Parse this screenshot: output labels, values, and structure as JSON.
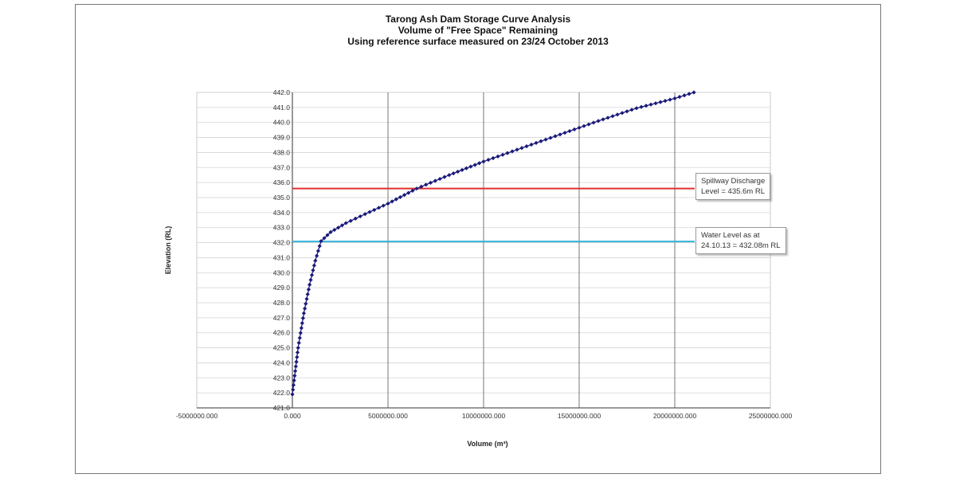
{
  "chart_data": {
    "type": "scatter",
    "title_lines": [
      "Tarong Ash Dam Storage Curve Analysis",
      "Volume of \"Free Space\" Remaining",
      "Using reference surface measured on 23/24 October 2013"
    ],
    "xlabel": "Volume (m³)",
    "ylabel": "Elevation (RL)",
    "xlim": [
      -5000000,
      25000000
    ],
    "ylim": [
      421.0,
      442.0
    ],
    "x_ticks": [
      "-5000000.000",
      "0.000",
      "5000000.000",
      "10000000.000",
      "15000000.000",
      "20000000.000",
      "25000000.000"
    ],
    "y_ticks": [
      "421.0",
      "422.0",
      "423.0",
      "424.0",
      "425.0",
      "426.0",
      "427.0",
      "428.0",
      "429.0",
      "430.0",
      "431.0",
      "432.0",
      "433.0",
      "434.0",
      "435.0",
      "436.0",
      "437.0",
      "438.0",
      "439.0",
      "440.0",
      "441.0",
      "442.0"
    ],
    "grid": true,
    "marker_color": "#1a1a7a",
    "curve": {
      "x": [
        0,
        300000,
        600000,
        900000,
        1200000,
        1500000,
        2000000,
        2800000,
        3800000,
        5000000,
        6500000,
        8200000,
        10000000,
        12000000,
        14000000,
        16000000,
        18000000,
        20000000,
        21000000
      ],
      "y": [
        421.9,
        425.0,
        427.3,
        429.2,
        430.8,
        432.1,
        432.7,
        433.3,
        433.9,
        434.6,
        435.6,
        436.5,
        437.4,
        438.3,
        439.2,
        440.1,
        440.95,
        441.6,
        442.0
      ]
    },
    "reference_lines": [
      {
        "name": "Spillway Discharge Level",
        "y": 435.6,
        "color": "#e03030",
        "label_lines": [
          "Spillway Discharge",
          "Level = 435.6m RL"
        ]
      },
      {
        "name": "Water Level",
        "y": 432.08,
        "color": "#35b4dc",
        "label_lines": [
          "Water Level as at",
          "24.10.13 = 432.08m RL"
        ]
      }
    ]
  }
}
